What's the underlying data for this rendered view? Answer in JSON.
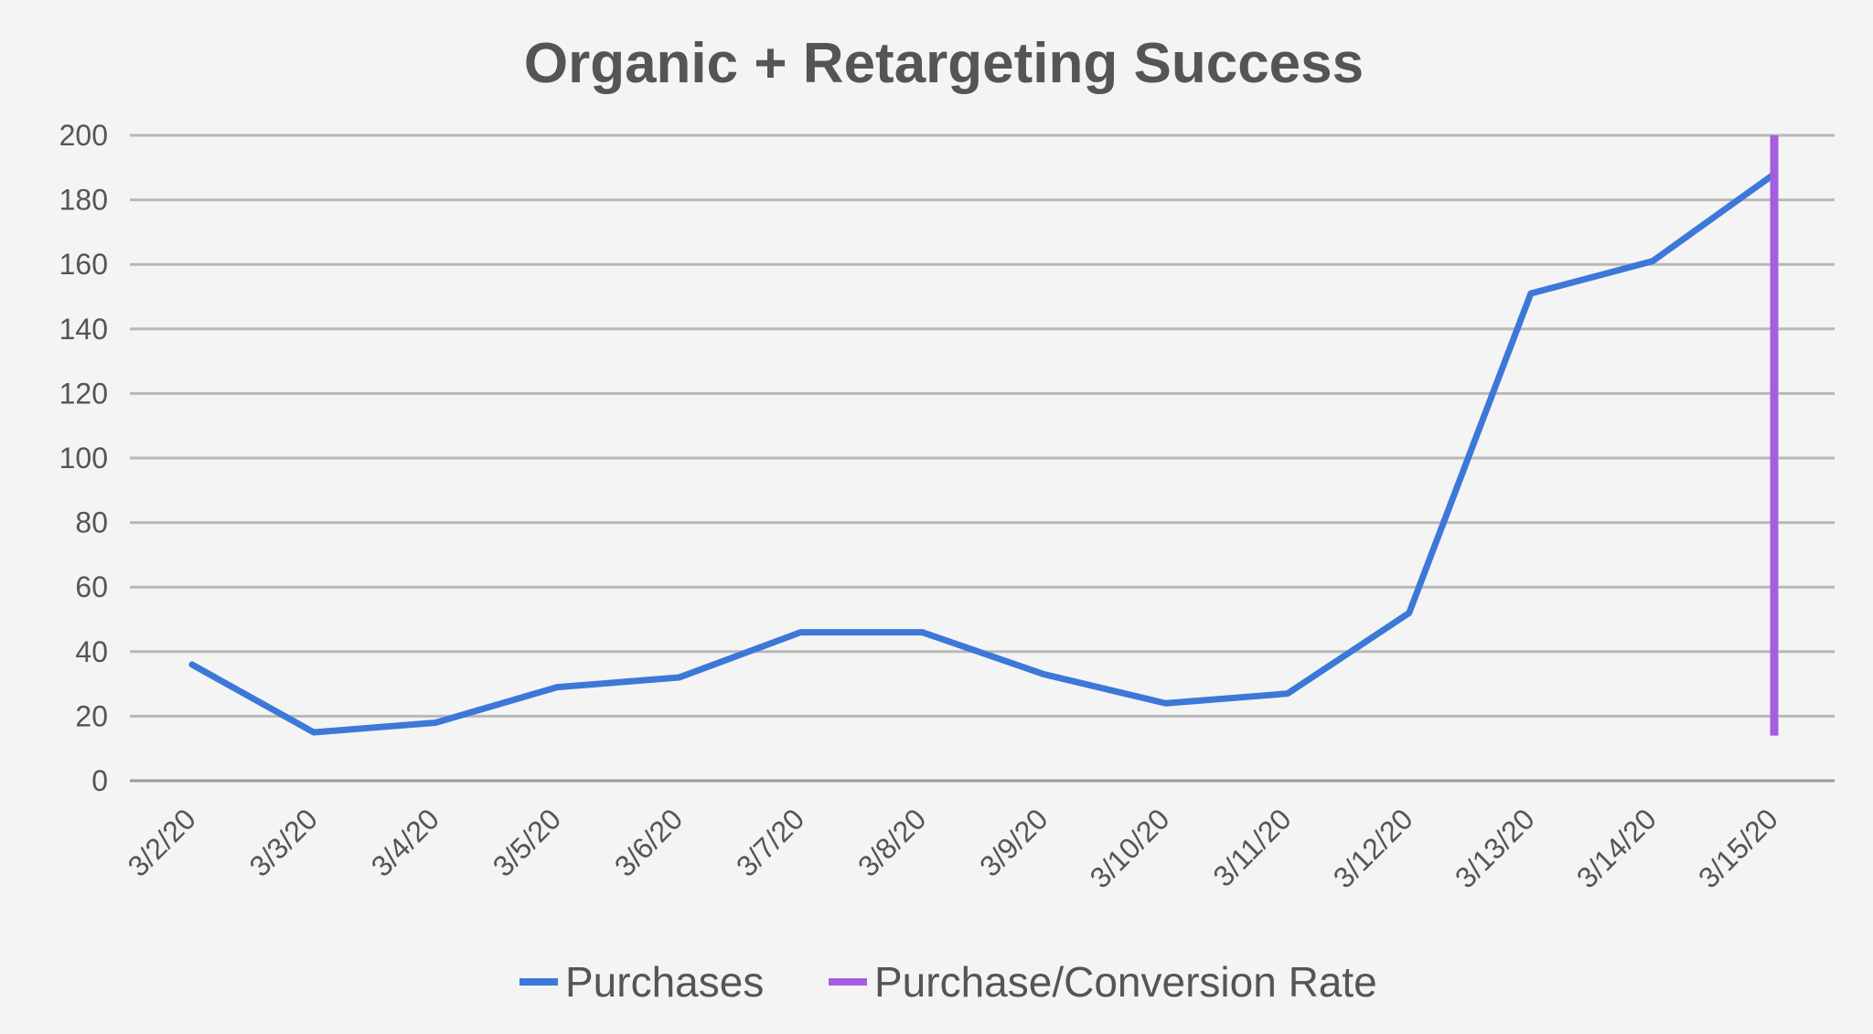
{
  "chart_data": {
    "type": "line",
    "title": "Organic + Retargeting Success",
    "xlabel": "",
    "ylabel": "",
    "categories": [
      "3/2/20",
      "3/3/20",
      "3/4/20",
      "3/5/20",
      "3/6/20",
      "3/7/20",
      "3/8/20",
      "3/9/20",
      "3/10/20",
      "3/11/20",
      "3/12/20",
      "3/13/20",
      "3/14/20",
      "3/15/20"
    ],
    "ylim": [
      0,
      200
    ],
    "yticks": [
      0,
      20,
      40,
      60,
      80,
      100,
      120,
      140,
      160,
      180,
      200
    ],
    "grid": true,
    "legend_position": "bottom",
    "series": [
      {
        "name": "Purchases",
        "color": "#3c78d8",
        "values": [
          36,
          15,
          18,
          29,
          32,
          46,
          46,
          33,
          24,
          27,
          52,
          151,
          161,
          188
        ]
      },
      {
        "name": "Purchase/Conversion Rate",
        "color": "#a55ee0",
        "x": "3/15/20",
        "y_range": [
          14,
          200
        ]
      }
    ]
  }
}
